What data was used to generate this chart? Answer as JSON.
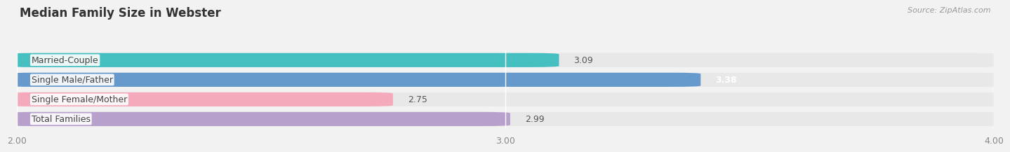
{
  "title": "Median Family Size in Webster",
  "source": "Source: ZipAtlas.com",
  "categories": [
    "Married-Couple",
    "Single Male/Father",
    "Single Female/Mother",
    "Total Families"
  ],
  "values": [
    3.09,
    3.38,
    2.75,
    2.99
  ],
  "bar_colors": [
    "#45BFBF",
    "#6699CC",
    "#F5AABB",
    "#B8A0CC"
  ],
  "bar_bg_color": "#E8E8E8",
  "xlim_min": 2.0,
  "xlim_max": 4.0,
  "xticks": [
    2.0,
    3.0,
    4.0
  ],
  "label_fontsize": 9.0,
  "value_fontsize": 9.0,
  "title_fontsize": 12,
  "bar_height": 0.68,
  "bar_gap": 0.32,
  "background_color": "#F2F2F2",
  "value_colors": [
    "#555555",
    "#ffffff",
    "#555555",
    "#555555"
  ],
  "value_bold": [
    false,
    true,
    false,
    false
  ]
}
